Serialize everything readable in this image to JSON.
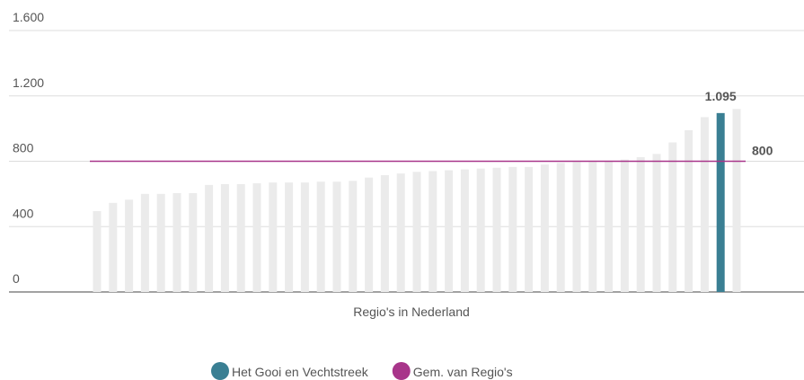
{
  "chart_data": {
    "type": "bar",
    "xlabel": "Regio's in Nederland",
    "categories": [
      null,
      null,
      null,
      null,
      null,
      null,
      null,
      null,
      null,
      null,
      null,
      null,
      null,
      null,
      null,
      null,
      null,
      null,
      null,
      null,
      null,
      null,
      null,
      null,
      null,
      null,
      null,
      null,
      null,
      null,
      null,
      null,
      null,
      null,
      null,
      null,
      null,
      null,
      null,
      null,
      null
    ],
    "series": [
      {
        "color": "#ebebeb",
        "values": [
          495,
          545,
          565,
          600,
          600,
          605,
          605,
          655,
          660,
          660,
          665,
          670,
          670,
          670,
          675,
          675,
          680,
          700,
          715,
          725,
          735,
          740,
          745,
          750,
          755,
          760,
          765,
          765,
          780,
          790,
          795,
          795,
          800,
          810,
          825,
          845,
          915,
          990,
          1070,
          null,
          1120
        ]
      },
      {
        "name": "Het Gooi en Vechtstreek",
        "color": "#3a7f93",
        "values": [
          null,
          null,
          null,
          null,
          null,
          null,
          null,
          null,
          null,
          null,
          null,
          null,
          null,
          null,
          null,
          null,
          null,
          null,
          null,
          null,
          null,
          null,
          null,
          null,
          null,
          null,
          null,
          null,
          null,
          null,
          null,
          null,
          null,
          null,
          null,
          null,
          null,
          null,
          null,
          1095,
          null
        ],
        "value_labels": [
          null,
          null,
          null,
          null,
          null,
          null,
          null,
          null,
          null,
          null,
          null,
          null,
          null,
          null,
          null,
          null,
          null,
          null,
          null,
          null,
          null,
          null,
          null,
          null,
          null,
          null,
          null,
          null,
          null,
          null,
          null,
          null,
          null,
          null,
          null,
          null,
          null,
          null,
          null,
          "1.095",
          null
        ]
      }
    ],
    "reference_line": {
      "name": "Gem. van Regio's",
      "value": 800,
      "label": "800",
      "color": "#a8358a"
    },
    "ylim": [
      0,
      1600
    ],
    "yticks": [
      0,
      400,
      800,
      {
        "value": 1200,
        "label": "1.200"
      },
      {
        "value": 1600,
        "label": "1.600"
      }
    ],
    "grid": true
  }
}
